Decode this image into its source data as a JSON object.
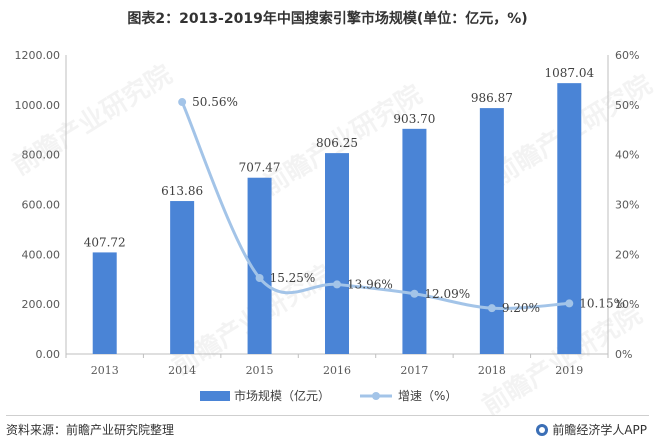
{
  "title": "图表2：2013-2019年中国搜索引擎市场规模(单位：亿元，%)",
  "source": "资料来源：前瞻产业研究院整理",
  "brand": "前瞻经济学人APP",
  "watermark": "前瞻产业研究院",
  "colors": {
    "bar": "#4a84d6",
    "line": "#a3c4e8",
    "axis": "#bfbfbf",
    "text": "#595959"
  },
  "chart_data": {
    "type": "bar",
    "categories": [
      "2013",
      "2014",
      "2015",
      "2016",
      "2017",
      "2018",
      "2019"
    ],
    "series": [
      {
        "name": "市场规模（亿元）",
        "type": "bar",
        "axis": "left",
        "values": [
          407.72,
          613.86,
          707.47,
          806.25,
          903.7,
          986.87,
          1087.04
        ],
        "labels": [
          "407.72",
          "613.86",
          "707.47",
          "806.25",
          "903.70",
          "986.87",
          "1087.04"
        ]
      },
      {
        "name": "增速（%）",
        "type": "line",
        "axis": "right",
        "values": [
          null,
          50.56,
          15.25,
          13.96,
          12.09,
          9.2,
          10.15
        ],
        "labels": [
          "",
          "50.56%",
          "15.25%",
          "13.96%",
          "12.09%",
          "9.20%",
          "10.15%"
        ]
      }
    ],
    "y_left": {
      "min": 0,
      "max": 1200,
      "step": 200,
      "ticks": [
        "0.00",
        "200.00",
        "400.00",
        "600.00",
        "800.00",
        "1000.00",
        "1200.00"
      ]
    },
    "y_right": {
      "min": 0,
      "max": 60,
      "step": 10,
      "ticks": [
        "0%",
        "10%",
        "20%",
        "30%",
        "40%",
        "50%",
        "60%"
      ]
    },
    "grid": false,
    "legend": "bottom"
  }
}
